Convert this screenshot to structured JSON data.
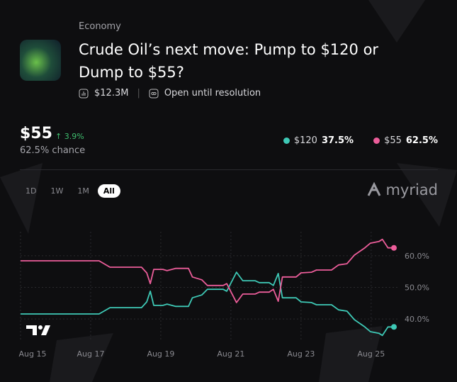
{
  "header": {
    "category": "Economy",
    "title": "Crude Oil’s next move: Pump to $120 or Dump to $55?",
    "volume": "$12.3M",
    "status": "Open until resolution"
  },
  "summary": {
    "price": "$55",
    "change": "3.9%",
    "chance": "62.5% chance"
  },
  "range_buttons": [
    "1D",
    "1W",
    "1M",
    "All"
  ],
  "brand": "myriad",
  "chart_data": {
    "type": "line",
    "x": [
      15.0,
      17.24,
      17.55,
      18.45,
      18.6,
      18.7,
      18.8,
      19.06,
      19.18,
      19.42,
      19.79,
      19.9,
      20.17,
      20.33,
      20.78,
      20.88,
      21.16,
      21.34,
      21.69,
      21.81,
      22.09,
      22.21,
      22.35,
      22.47,
      22.86,
      23.0,
      23.3,
      23.44,
      23.87,
      24.07,
      24.31,
      24.52,
      24.82,
      24.98,
      25.22,
      25.32,
      25.48,
      25.65
    ],
    "series": [
      {
        "name": "$120",
        "color": "#3ec9b6",
        "legend_label": "37.5%",
        "values": [
          41.6,
          41.6,
          43.6,
          43.6,
          45.4,
          48.8,
          44.3,
          44.3,
          44.7,
          44.0,
          44.0,
          46.7,
          47.6,
          49.4,
          49.4,
          48.8,
          54.8,
          52.1,
          52.1,
          51.5,
          51.5,
          50.6,
          54.4,
          46.7,
          46.7,
          45.4,
          45.2,
          44.5,
          44.5,
          42.9,
          42.5,
          39.8,
          37.5,
          36.0,
          35.5,
          34.8,
          37.5,
          37.5
        ]
      },
      {
        "name": "$55",
        "color": "#ec5d9a",
        "legend_label": "62.5%",
        "values": [
          58.4,
          58.4,
          56.4,
          56.4,
          54.6,
          51.2,
          55.7,
          55.7,
          55.3,
          56.0,
          56.0,
          53.3,
          52.4,
          50.6,
          50.6,
          51.2,
          45.2,
          47.9,
          47.9,
          48.5,
          48.5,
          49.4,
          45.6,
          53.3,
          53.3,
          54.6,
          54.8,
          55.5,
          55.5,
          57.1,
          57.5,
          60.2,
          62.5,
          64.0,
          64.5,
          65.2,
          62.5,
          62.5
        ]
      }
    ],
    "xlim": [
      15.0,
      26.6
    ],
    "ylim": [
      33.3,
      67.6
    ],
    "xticks": [
      {
        "value": 15,
        "label": "Aug 15"
      },
      {
        "value": 17,
        "label": "Aug 17"
      },
      {
        "value": 19,
        "label": "Aug 19"
      },
      {
        "value": 21,
        "label": "Aug 21"
      },
      {
        "value": 23,
        "label": "Aug 23"
      },
      {
        "value": 25,
        "label": "Aug 25"
      }
    ],
    "yticks": [
      {
        "value": 40,
        "label": "40.0%"
      },
      {
        "value": 50,
        "label": "50.0%"
      },
      {
        "value": 60,
        "label": "60.0%"
      }
    ],
    "grid": true
  }
}
